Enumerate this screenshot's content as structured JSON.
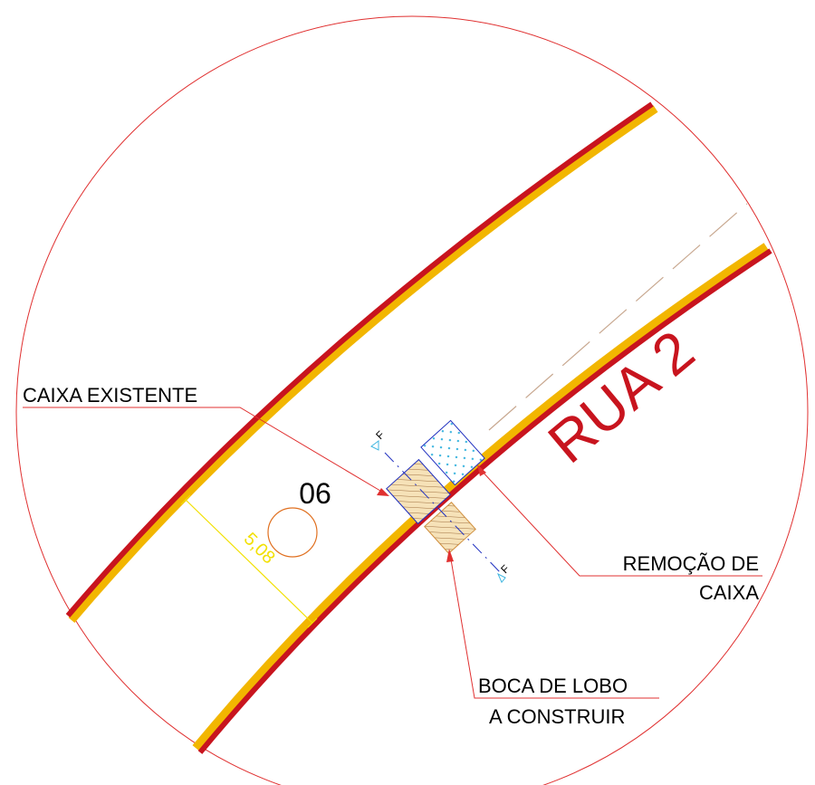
{
  "labels": {
    "existing_box": "CAIXA EXISTENTE",
    "box_number": "06",
    "dimension": "5,08",
    "street": "RUA 2",
    "section_top": "F",
    "section_bottom": "F",
    "removal_line1": "REMOÇÃO DE",
    "removal_line2": "CAIXA",
    "inlet_line1": "BOCA DE LOBO",
    "inlet_line2": "A CONSTRUIR"
  }
}
